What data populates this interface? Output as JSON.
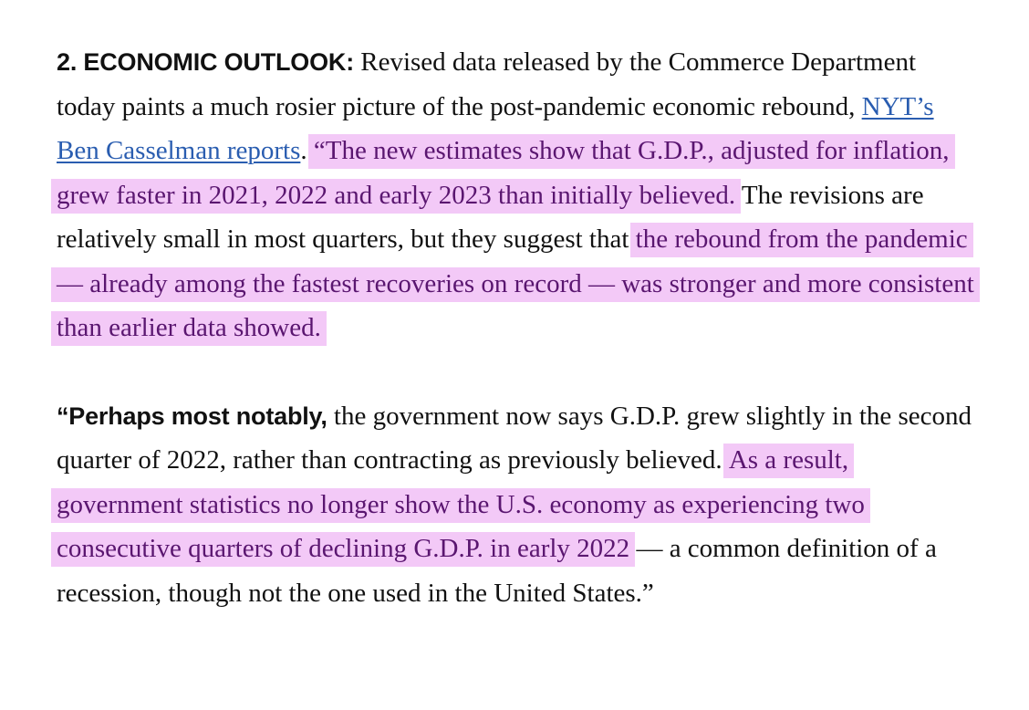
{
  "highlight_color": "#f3c9f7",
  "highlight_text_color": "#5a1670",
  "link_color": "#2a5db0",
  "paragraph_1": {
    "lead": "2. ECONOMIC OUTLOOK:",
    "text_before_link": " Revised data released by the Commerce Department today paints a much rosier picture of the post-pandemic economic rebound, ",
    "link_text": "NYT’s Ben Casselman reports",
    "text_after_link": ". ",
    "highlight_1": "“The new estimates show that G.D.P., adjusted for inflation, grew faster in 2021, 2022 and early 2023 than initially believed.",
    "text_middle": " The revisions are relatively small in most quarters, but they suggest that ",
    "highlight_2": "the rebound from the pandemic — already among the fastest recoveries on record — was stronger and more consistent than earlier data showed."
  },
  "paragraph_2": {
    "lead": "“Perhaps most notably,",
    "text_before_highlight": " the government now says G.D.P. grew slightly in the second quarter of 2022, rather than contracting as previously believed. ",
    "highlight": "As a result, government statistics no longer show the U.S. economy as experiencing two consecutive quarters of declining G.D.P. in early 2022",
    "text_after_highlight": " — a common definition of a recession, though not the one used in the United States.”"
  }
}
